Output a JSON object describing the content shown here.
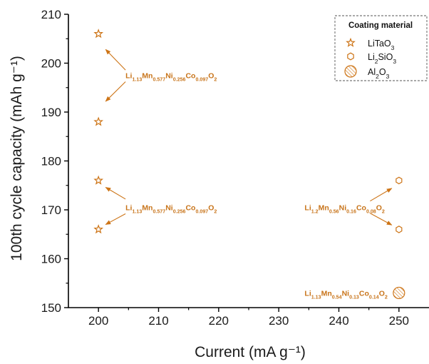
{
  "chart_data": {
    "type": "scatter",
    "xlabel": "Current (mA g⁻¹)",
    "ylabel": "100th cycle capacity (mAh g⁻¹)",
    "xlim": [
      195,
      255
    ],
    "ylim": [
      150,
      210
    ],
    "x_ticks": [
      200,
      210,
      220,
      230,
      240,
      250
    ],
    "y_ticks": [
      150,
      160,
      170,
      180,
      190,
      200,
      210
    ],
    "grid": false,
    "legend": {
      "title": "Coating material",
      "placement": "top-right",
      "items": [
        {
          "marker": "star-icon",
          "formula": "LiTaO3",
          "label": [
            [
              "LiTaO",
              ""
            ],
            [
              "3",
              "sub"
            ]
          ]
        },
        {
          "marker": "hexagon-icon",
          "formula": "Li2SiO3",
          "label": [
            [
              "Li",
              ""
            ],
            [
              "2",
              "sub"
            ],
            [
              "SiO",
              ""
            ],
            [
              "3",
              "sub"
            ]
          ]
        },
        {
          "marker": "hatched-circle-icon",
          "formula": "Al2O3",
          "label": [
            [
              "Al",
              ""
            ],
            [
              "2",
              "sub"
            ],
            [
              "O",
              ""
            ],
            [
              "3",
              "sub"
            ]
          ]
        }
      ]
    },
    "series": [
      {
        "name": "LiTaO3",
        "marker": "star-icon",
        "points": [
          [
            200,
            206
          ],
          [
            200,
            188
          ],
          [
            200,
            176
          ],
          [
            200,
            166
          ]
        ]
      },
      {
        "name": "Li2SiO3",
        "marker": "hexagon-icon",
        "points": [
          [
            250,
            176
          ],
          [
            250,
            166
          ]
        ]
      },
      {
        "name": "Al2O3",
        "marker": "hatched-circle-icon",
        "points": [
          [
            250,
            153
          ]
        ]
      }
    ],
    "annotations": [
      {
        "formula": "Li1.13Mn0.577Ni0.256Co0.097O2",
        "anchor": [
          204.5,
          197.5
        ],
        "parts": [
          [
            "Li",
            ""
          ],
          [
            "1.13",
            "sub"
          ],
          [
            "Mn",
            ""
          ],
          [
            "0.577",
            "sub"
          ],
          [
            "Ni",
            ""
          ],
          [
            "0.256",
            "sub"
          ],
          [
            "Co",
            ""
          ],
          [
            "0.097",
            "sub"
          ],
          [
            "O",
            ""
          ],
          [
            "2",
            "sub"
          ]
        ],
        "arrows": [
          [
            [
              204.5,
              198.6
            ],
            [
              201.2,
              202.8
            ]
          ],
          [
            [
              204.5,
              196.2
            ],
            [
              201.2,
              192.2
            ]
          ]
        ]
      },
      {
        "formula": "Li1.13Mn0.577Ni0.256Co0.097O2",
        "anchor": [
          204.5,
          170.5
        ],
        "parts": [
          [
            "Li",
            ""
          ],
          [
            "1.13",
            "sub"
          ],
          [
            "Mn",
            ""
          ],
          [
            "0.577",
            "sub"
          ],
          [
            "Ni",
            ""
          ],
          [
            "0.256",
            "sub"
          ],
          [
            "Co",
            ""
          ],
          [
            "0.097",
            "sub"
          ],
          [
            "O",
            ""
          ],
          [
            "2",
            "sub"
          ]
        ],
        "arrows": [
          [
            [
              204.5,
              172.2
            ],
            [
              201.2,
              174.6
            ]
          ],
          [
            [
              204.5,
              169.2
            ],
            [
              201.2,
              167.0
            ]
          ]
        ]
      },
      {
        "formula": "Li1.2Mn0.56Ni0.16Co0.08O2",
        "anchor": [
          234.3,
          170.5
        ],
        "parts": [
          [
            "Li",
            ""
          ],
          [
            "1.2",
            "sub"
          ],
          [
            "Mn",
            ""
          ],
          [
            "0.56",
            "sub"
          ],
          [
            "Ni",
            ""
          ],
          [
            "0.16",
            "sub"
          ],
          [
            "Co",
            ""
          ],
          [
            "0.08",
            "sub"
          ],
          [
            "O",
            ""
          ],
          [
            "2",
            "sub"
          ]
        ],
        "arrows": [
          [
            [
              245.2,
              171.8
            ],
            [
              248.8,
              174.4
            ]
          ],
          [
            [
              245.2,
              169.3
            ],
            [
              248.8,
              166.9
            ]
          ]
        ]
      },
      {
        "formula": "Li1.13Mn0.54Ni0.13Co0.14O2",
        "anchor": [
          234.3,
          153
        ],
        "parts": [
          [
            "Li",
            ""
          ],
          [
            "1.13",
            "sub"
          ],
          [
            "Mn",
            ""
          ],
          [
            "0.54",
            "sub"
          ],
          [
            "Ni",
            ""
          ],
          [
            "0.13",
            "sub"
          ],
          [
            "Co",
            ""
          ],
          [
            "0.14",
            "sub"
          ],
          [
            "O",
            ""
          ],
          [
            "2",
            "sub"
          ]
        ],
        "arrows": []
      }
    ],
    "colors": {
      "marker": "#cd7416",
      "axis": "#000000"
    }
  }
}
